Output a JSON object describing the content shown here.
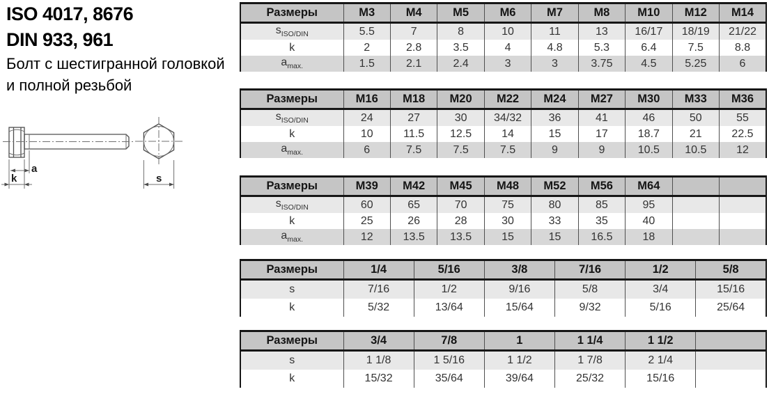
{
  "header": {
    "iso": "ISO 4017, 8676",
    "din": "DIN 933, 961",
    "description_line1": "Болт с шестигранной головкой",
    "description_line2": "и полной резьбой"
  },
  "drawing": {
    "dim_labels": {
      "a": "a",
      "k": "k",
      "s": "s"
    }
  },
  "colors": {
    "header_row_bg": "#c5c5c5",
    "row_s_bg": "#e8e8e8",
    "row_k_bg": "#ffffff",
    "row_a_bg": "#d7d7d7",
    "table_border": "#161616",
    "cell_divider": "#4e4e4e",
    "text": "#333333"
  },
  "tables": [
    {
      "header_label": "Размеры",
      "columns": [
        "M3",
        "M4",
        "M5",
        "M6",
        "M7",
        "M8",
        "M10",
        "M12",
        "M14"
      ],
      "rows": [
        {
          "key": "s",
          "label_main": "s",
          "label_sub": "ISO/DIN",
          "values": [
            "5.5",
            "7",
            "8",
            "10",
            "11",
            "13",
            "16/17",
            "18/19",
            "21/22"
          ]
        },
        {
          "key": "k",
          "label_main": "k",
          "label_sub": "",
          "values": [
            "2",
            "2.8",
            "3.5",
            "4",
            "4.8",
            "5.3",
            "6.4",
            "7.5",
            "8.8"
          ]
        },
        {
          "key": "a",
          "label_main": "a",
          "label_sub": "max.",
          "values": [
            "1.5",
            "2.1",
            "2.4",
            "3",
            "3",
            "3.75",
            "4.5",
            "5.25",
            "6"
          ]
        }
      ]
    },
    {
      "header_label": "Размеры",
      "columns": [
        "M16",
        "M18",
        "M20",
        "M22",
        "M24",
        "M27",
        "M30",
        "M33",
        "M36"
      ],
      "rows": [
        {
          "key": "s",
          "label_main": "s",
          "label_sub": "ISO/DIN",
          "values": [
            "24",
            "27",
            "30",
            "34/32",
            "36",
            "41",
            "46",
            "50",
            "55"
          ]
        },
        {
          "key": "k",
          "label_main": "k",
          "label_sub": "",
          "values": [
            "10",
            "11.5",
            "12.5",
            "14",
            "15",
            "17",
            "18.7",
            "21",
            "22.5"
          ]
        },
        {
          "key": "a",
          "label_main": "a",
          "label_sub": "max.",
          "values": [
            "6",
            "7.5",
            "7.5",
            "7.5",
            "9",
            "9",
            "10.5",
            "10.5",
            "12"
          ]
        }
      ]
    },
    {
      "header_label": "Размеры",
      "columns": [
        "M39",
        "M42",
        "M45",
        "M48",
        "M52",
        "M56",
        "M64",
        "",
        ""
      ],
      "rows": [
        {
          "key": "s",
          "label_main": "s",
          "label_sub": "ISO/DIN",
          "values": [
            "60",
            "65",
            "70",
            "75",
            "80",
            "85",
            "95",
            "",
            ""
          ]
        },
        {
          "key": "k",
          "label_main": "k",
          "label_sub": "",
          "values": [
            "25",
            "26",
            "28",
            "30",
            "33",
            "35",
            "40",
            "",
            ""
          ]
        },
        {
          "key": "a",
          "label_main": "a",
          "label_sub": "max.",
          "values": [
            "12",
            "13.5",
            "13.5",
            "15",
            "15",
            "16.5",
            "18",
            "",
            ""
          ]
        }
      ]
    },
    {
      "header_label": "Размеры",
      "columns": [
        "1/4",
        "5/16",
        "3/8",
        "7/16",
        "1/2",
        "5/8"
      ],
      "rows": [
        {
          "key": "s",
          "label_main": "s",
          "label_sub": "",
          "values": [
            "7/16",
            "1/2",
            "9/16",
            "5/8",
            "3/4",
            "15/16"
          ]
        },
        {
          "key": "k",
          "label_main": "k",
          "label_sub": "",
          "values": [
            "5/32",
            "13/64",
            "15/64",
            "9/32",
            "5/16",
            "25/64"
          ]
        }
      ]
    },
    {
      "header_label": "Размеры",
      "columns": [
        "3/4",
        "7/8",
        "1",
        "1 1/4",
        "1 1/2",
        ""
      ],
      "rows": [
        {
          "key": "s",
          "label_main": "s",
          "label_sub": "",
          "values": [
            "1 1/8",
            "1 5/16",
            "1 1/2",
            "1 7/8",
            "2 1/4",
            ""
          ]
        },
        {
          "key": "k",
          "label_main": "k",
          "label_sub": "",
          "values": [
            "15/32",
            "35/64",
            "39/64",
            "25/32",
            "15/16",
            ""
          ]
        }
      ]
    }
  ]
}
